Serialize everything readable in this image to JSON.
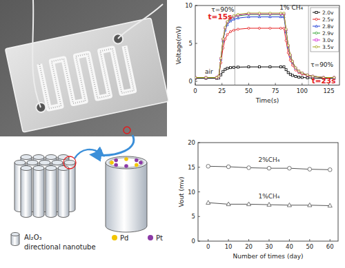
{
  "diagram": {
    "items": [
      {
        "lines": [
          "Al₂O₃",
          "directional nanotube"
        ],
        "color": "#e3e8ee"
      },
      {
        "lines": [
          "Pd"
        ],
        "color": "#f2c500"
      },
      {
        "lines": [
          "Pt"
        ],
        "color": "#8b3aa6"
      }
    ]
  },
  "chart_data": [
    {
      "type": "line",
      "x_label": "Time(s)",
      "y_label": "Voltage(mV)",
      "x": [
        0,
        10,
        20,
        22,
        24,
        26,
        28,
        30,
        33,
        36,
        40,
        50,
        60,
        70,
        80,
        83,
        85,
        87,
        89,
        91,
        94,
        97,
        100,
        105,
        110,
        120,
        130
      ],
      "series": [
        {
          "name": "2.0v",
          "color": "#000000",
          "marker": "square",
          "values": [
            0.4,
            0.4,
            0.4,
            0.43,
            0.85,
            1.3,
            1.57,
            1.71,
            1.8,
            1.84,
            1.87,
            1.9,
            1.9,
            1.9,
            1.9,
            1.9,
            1.53,
            1.15,
            0.93,
            0.78,
            0.63,
            0.55,
            0.51,
            0.46,
            0.43,
            0.4,
            0.4
          ]
        },
        {
          "name": "2.5v",
          "color": "#e41a1c",
          "marker": "circle",
          "values": [
            0.5,
            0.5,
            0.5,
            0.63,
            2.45,
            4.4,
            5.57,
            6.16,
            6.55,
            6.74,
            6.87,
            7.0,
            7.0,
            7.0,
            7.0,
            7.0,
            5.38,
            3.75,
            2.78,
            2.13,
            1.48,
            1.15,
            0.96,
            0.76,
            0.63,
            0.5,
            0.5
          ]
        },
        {
          "name": "2.8v",
          "color": "#1f3fd6",
          "marker": "triangle",
          "values": [
            0.5,
            0.5,
            0.5,
            0.66,
            2.9,
            5.3,
            6.74,
            7.46,
            7.94,
            8.18,
            8.34,
            8.5,
            8.5,
            8.5,
            8.5,
            8.5,
            6.5,
            4.5,
            3.3,
            2.5,
            1.7,
            1.3,
            1.06,
            0.82,
            0.66,
            0.5,
            0.5
          ]
        },
        {
          "name": "2.9v",
          "color": "#2ca02c",
          "marker": "circle",
          "values": [
            0.5,
            0.5,
            0.5,
            0.67,
            2.99,
            5.48,
            6.97,
            7.72,
            8.22,
            8.47,
            8.63,
            8.8,
            8.8,
            8.8,
            8.8,
            8.8,
            6.73,
            4.65,
            3.41,
            2.58,
            1.75,
            1.33,
            1.08,
            0.83,
            0.67,
            0.5,
            0.5
          ]
        },
        {
          "name": "3.0v",
          "color": "#d62fd6",
          "marker": "square",
          "values": [
            0.5,
            0.5,
            0.5,
            0.67,
            3.02,
            5.54,
            7.05,
            7.81,
            8.31,
            8.56,
            8.73,
            8.9,
            8.9,
            8.9,
            8.9,
            8.9,
            6.8,
            4.7,
            3.44,
            2.6,
            1.76,
            1.34,
            1.09,
            0.84,
            0.67,
            0.5,
            0.5
          ]
        },
        {
          "name": "3.5v",
          "color": "#a3a31a",
          "marker": "circle",
          "values": [
            0.5,
            0.5,
            0.5,
            0.67,
            3.05,
            5.6,
            7.13,
            7.9,
            8.41,
            8.66,
            8.83,
            9.0,
            9.0,
            9.0,
            9.0,
            9.0,
            6.88,
            4.75,
            3.48,
            2.63,
            1.78,
            1.35,
            1.1,
            0.84,
            0.67,
            0.5,
            0.5
          ]
        }
      ],
      "xlim": [
        0,
        135
      ],
      "xticks": [
        0,
        25,
        50,
        75,
        100,
        125
      ],
      "ylim": [
        -0.5,
        10
      ],
      "yticks": [
        0,
        5,
        10
      ],
      "legend": "top-right",
      "vlines": [
        37,
        106
      ],
      "annotations": [
        {
          "text": "τ=90%",
          "x": 15,
          "y": 9.2
        },
        {
          "text": "t=15s",
          "x": 12,
          "y": 8.2,
          "color": "#e41a1c"
        },
        {
          "text": "1% CH₄",
          "x": 79,
          "y": 9.5
        },
        {
          "text": "air",
          "x": 9,
          "y": 1.0
        },
        {
          "text": "τ=90%",
          "x": 108,
          "y": 1.9
        },
        {
          "text": "t=23s",
          "x": 109,
          "y": -0.3,
          "color": "#e41a1c"
        }
      ]
    },
    {
      "type": "line",
      "x_label": "Number of times (day)",
      "y_label": "Vout (mv)",
      "x": [
        0,
        10,
        20,
        30,
        40,
        50,
        60
      ],
      "series": [
        {
          "name": "2%CH₄",
          "color": "#555555",
          "marker": "circle",
          "values": [
            15.2,
            15.1,
            14.9,
            14.8,
            14.8,
            14.6,
            14.5
          ]
        },
        {
          "name": "1%CH₄",
          "color": "#555555",
          "marker": "triangle",
          "values": [
            7.8,
            7.5,
            7.5,
            7.4,
            7.3,
            7.3,
            7.2
          ]
        }
      ],
      "xlim": [
        -5,
        64
      ],
      "xticks": [
        0,
        10,
        20,
        30,
        40,
        50,
        60
      ],
      "ylim": [
        0,
        20
      ],
      "yticks": [
        0,
        5,
        10,
        15,
        20
      ]
    }
  ]
}
